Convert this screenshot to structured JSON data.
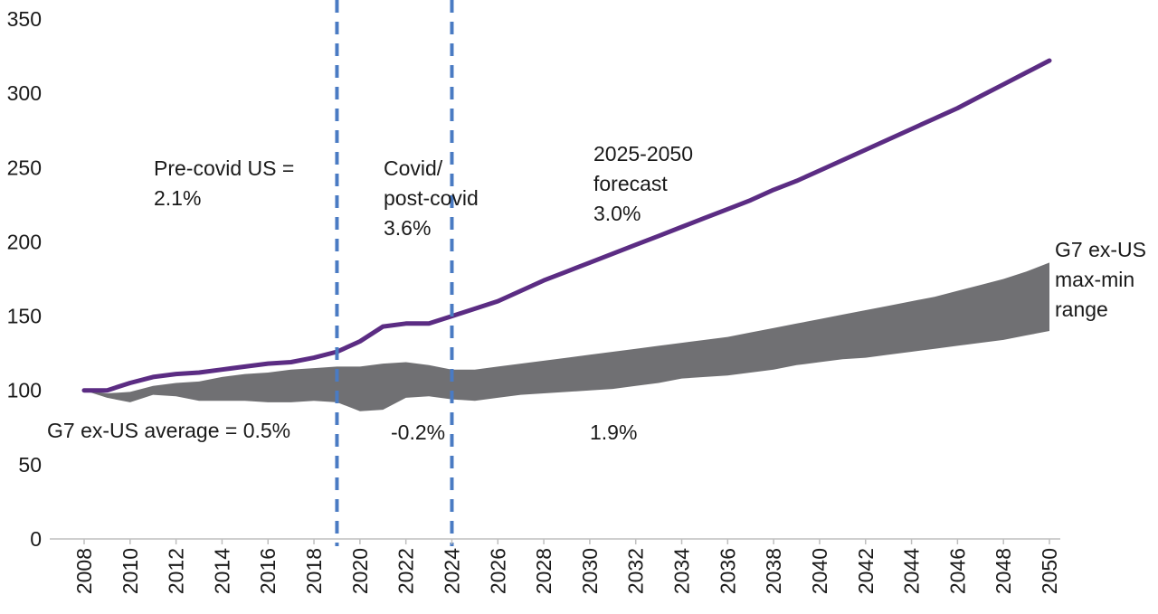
{
  "chart_data": {
    "type": "line",
    "x": [
      2008,
      2009,
      2010,
      2011,
      2012,
      2013,
      2014,
      2015,
      2016,
      2017,
      2018,
      2019,
      2020,
      2021,
      2022,
      2023,
      2024,
      2025,
      2026,
      2027,
      2028,
      2029,
      2030,
      2031,
      2032,
      2033,
      2034,
      2035,
      2036,
      2037,
      2038,
      2039,
      2040,
      2041,
      2042,
      2043,
      2044,
      2045,
      2046,
      2047,
      2048,
      2049,
      2050
    ],
    "series": [
      {
        "name": "US",
        "color": "#5b2c83",
        "values": [
          100,
          100,
          105,
          109,
          111,
          112,
          114,
          116,
          118,
          119,
          122,
          126,
          133,
          143,
          145,
          145,
          150,
          155,
          160,
          167,
          174,
          180,
          186,
          192,
          198,
          204,
          210,
          216,
          222,
          228,
          235,
          241,
          248,
          255,
          262,
          269,
          276,
          283,
          290,
          298,
          306,
          314,
          322
        ]
      }
    ],
    "band": {
      "name": "G7 ex-US max-min range",
      "color": "#707073",
      "upper": [
        100,
        98,
        99,
        103,
        105,
        106,
        109,
        111,
        112,
        114,
        115,
        116,
        116,
        118,
        119,
        117,
        114,
        114,
        116,
        118,
        120,
        122,
        124,
        126,
        128,
        130,
        132,
        134,
        136,
        139,
        142,
        145,
        148,
        151,
        154,
        157,
        160,
        163,
        167,
        171,
        175,
        180,
        186
      ],
      "lower": [
        100,
        95,
        92,
        97,
        96,
        93,
        93,
        93,
        92,
        92,
        93,
        92,
        86,
        87,
        95,
        96,
        94,
        93,
        95,
        97,
        98,
        99,
        100,
        101,
        103,
        105,
        108,
        109,
        110,
        112,
        114,
        117,
        119,
        121,
        122,
        124,
        126,
        128,
        130,
        132,
        134,
        137,
        140
      ]
    },
    "dividers": [
      2019.0,
      2024.0
    ],
    "ylim": [
      0,
      350
    ],
    "yticks": [
      0,
      50,
      100,
      150,
      200,
      250,
      300,
      350
    ],
    "xticks": [
      "2008",
      "2010",
      "2012",
      "2014",
      "2016",
      "2018",
      "2020",
      "2022",
      "2024",
      "2026",
      "2028",
      "2030",
      "2032",
      "2034",
      "2036",
      "2038",
      "2040",
      "2042",
      "2044",
      "2046",
      "2048",
      "2050"
    ],
    "annotations": {
      "pre_covid": [
        "Pre-covid US =",
        "2.1%"
      ],
      "covid": [
        "Covid/",
        "post-covid",
        "3.6%"
      ],
      "forecast": [
        "2025-2050",
        "forecast",
        "3.0%"
      ],
      "band_label": [
        "G7 ex-US",
        "max-min",
        "range"
      ],
      "g7_pre": "G7 ex-US average = 0.5%",
      "g7_covid": "-0.2%",
      "g7_forecast": "1.9%"
    }
  }
}
